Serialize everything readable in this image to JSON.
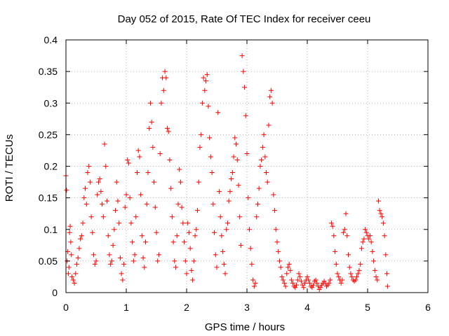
{
  "chart_data": {
    "type": "scatter",
    "title": "Day 052 of 2015, Rate Of TEC Index for receiver ceeu",
    "xlabel": "GPS time / hours",
    "ylabel": "ROTI / TECUs",
    "xlim": [
      0,
      6
    ],
    "ylim": [
      0,
      0.4
    ],
    "x_ticks": [
      0,
      1,
      2,
      3,
      4,
      5,
      6
    ],
    "x_tick_labels": [
      "0",
      "1",
      "2",
      "3",
      "4",
      "5",
      "6"
    ],
    "y_ticks": [
      0,
      0.05,
      0.1,
      0.15,
      0.2,
      0.25,
      0.3,
      0.35,
      0.4
    ],
    "y_tick_labels": [
      "0",
      "0.05",
      "0.1",
      "0.15",
      "0.2",
      "0.25",
      "0.3",
      "0.35",
      "0.4"
    ],
    "grid": true,
    "marker": "plus",
    "color": "#ff0000",
    "series": [
      {
        "name": "ROTI",
        "points": [
          [
            0.0,
            0.185
          ],
          [
            0.01,
            0.162
          ],
          [
            0.02,
            0.05
          ],
          [
            0.03,
            0.065
          ],
          [
            0.04,
            0.03
          ],
          [
            0.05,
            0.04
          ],
          [
            0.06,
            0.095
          ],
          [
            0.07,
            0.105
          ],
          [
            0.08,
            0.08
          ],
          [
            0.09,
            0.06
          ],
          [
            0.1,
            0.025
          ],
          [
            0.12,
            0.02
          ],
          [
            0.14,
            0.015
          ],
          [
            0.16,
            0.03
          ],
          [
            0.18,
            0.045
          ],
          [
            0.2,
            0.055
          ],
          [
            0.22,
            0.07
          ],
          [
            0.24,
            0.085
          ],
          [
            0.26,
            0.09
          ],
          [
            0.28,
            0.11
          ],
          [
            0.3,
            0.15
          ],
          [
            0.32,
            0.165
          ],
          [
            0.34,
            0.14
          ],
          [
            0.36,
            0.19
          ],
          [
            0.38,
            0.2
          ],
          [
            0.4,
            0.175
          ],
          [
            0.42,
            0.12
          ],
          [
            0.44,
            0.095
          ],
          [
            0.46,
            0.06
          ],
          [
            0.48,
            0.045
          ],
          [
            0.5,
            0.05
          ],
          [
            0.52,
            0.155
          ],
          [
            0.54,
            0.175
          ],
          [
            0.56,
            0.18
          ],
          [
            0.58,
            0.16
          ],
          [
            0.6,
            0.14
          ],
          [
            0.62,
            0.12
          ],
          [
            0.64,
            0.235
          ],
          [
            0.66,
            0.2
          ],
          [
            0.68,
            0.145
          ],
          [
            0.7,
            0.09
          ],
          [
            0.72,
            0.06
          ],
          [
            0.74,
            0.045
          ],
          [
            0.76,
            0.05
          ],
          [
            0.78,
            0.075
          ],
          [
            0.8,
            0.1
          ],
          [
            0.82,
            0.13
          ],
          [
            0.84,
            0.175
          ],
          [
            0.86,
            0.145
          ],
          [
            0.88,
            0.11
          ],
          [
            0.9,
            0.055
          ],
          [
            0.92,
            0.03
          ],
          [
            0.94,
            0.02
          ],
          [
            0.96,
            0.045
          ],
          [
            0.98,
            0.135
          ],
          [
            1.0,
            0.155
          ],
          [
            1.02,
            0.21
          ],
          [
            1.04,
            0.205
          ],
          [
            1.06,
            0.15
          ],
          [
            1.08,
            0.11
          ],
          [
            1.1,
            0.08
          ],
          [
            1.12,
            0.05
          ],
          [
            1.14,
            0.06
          ],
          [
            1.16,
            0.12
          ],
          [
            1.18,
            0.19
          ],
          [
            1.2,
            0.225
          ],
          [
            1.22,
            0.215
          ],
          [
            1.24,
            0.155
          ],
          [
            1.26,
            0.09
          ],
          [
            1.28,
            0.055
          ],
          [
            1.3,
            0.04
          ],
          [
            1.32,
            0.08
          ],
          [
            1.34,
            0.14
          ],
          [
            1.36,
            0.19
          ],
          [
            1.38,
            0.26
          ],
          [
            1.4,
            0.3
          ],
          [
            1.42,
            0.27
          ],
          [
            1.44,
            0.23
          ],
          [
            1.46,
            0.175
          ],
          [
            1.48,
            0.135
          ],
          [
            1.5,
            0.095
          ],
          [
            1.52,
            0.05
          ],
          [
            1.54,
            0.06
          ],
          [
            1.56,
            0.22
          ],
          [
            1.58,
            0.3
          ],
          [
            1.6,
            0.34
          ],
          [
            1.62,
            0.32
          ],
          [
            1.64,
            0.35
          ],
          [
            1.66,
            0.34
          ],
          [
            1.68,
            0.26
          ],
          [
            1.7,
            0.255
          ],
          [
            1.72,
            0.21
          ],
          [
            1.74,
            0.165
          ],
          [
            1.76,
            0.12
          ],
          [
            1.78,
            0.08
          ],
          [
            1.8,
            0.05
          ],
          [
            1.82,
            0.04
          ],
          [
            1.84,
            0.09
          ],
          [
            1.86,
            0.14
          ],
          [
            1.88,
            0.195
          ],
          [
            1.9,
            0.175
          ],
          [
            1.92,
            0.135
          ],
          [
            1.94,
            0.11
          ],
          [
            1.96,
            0.08
          ],
          [
            1.98,
            0.05
          ],
          [
            2.0,
            0.03
          ],
          [
            2.02,
            0.11
          ],
          [
            2.04,
            0.095
          ],
          [
            2.06,
            0.07
          ],
          [
            2.08,
            0.035
          ],
          [
            2.1,
            0.02
          ],
          [
            2.12,
            0.05
          ],
          [
            2.14,
            0.09
          ],
          [
            2.16,
            0.1
          ],
          [
            2.18,
            0.13
          ],
          [
            2.2,
            0.175
          ],
          [
            2.22,
            0.23
          ],
          [
            2.24,
            0.25
          ],
          [
            2.26,
            0.3
          ],
          [
            2.28,
            0.34
          ],
          [
            2.3,
            0.32
          ],
          [
            2.32,
            0.335
          ],
          [
            2.34,
            0.345
          ],
          [
            2.36,
            0.295
          ],
          [
            2.38,
            0.245
          ],
          [
            2.4,
            0.215
          ],
          [
            2.42,
            0.19
          ],
          [
            2.44,
            0.14
          ],
          [
            2.46,
            0.095
          ],
          [
            2.48,
            0.06
          ],
          [
            2.5,
            0.04
          ],
          [
            2.52,
            0.285
          ],
          [
            2.54,
            0.16
          ],
          [
            2.56,
            0.12
          ],
          [
            2.58,
            0.09
          ],
          [
            2.6,
            0.065
          ],
          [
            2.62,
            0.045
          ],
          [
            2.64,
            0.03
          ],
          [
            2.66,
            0.1
          ],
          [
            2.68,
            0.11
          ],
          [
            2.7,
            0.145
          ],
          [
            2.72,
            0.16
          ],
          [
            2.74,
            0.18
          ],
          [
            2.76,
            0.19
          ],
          [
            2.78,
            0.215
          ],
          [
            2.8,
            0.245
          ],
          [
            2.82,
            0.235
          ],
          [
            2.84,
            0.21
          ],
          [
            2.86,
            0.17
          ],
          [
            2.88,
            0.12
          ],
          [
            2.9,
            0.075
          ],
          [
            2.92,
            0.375
          ],
          [
            2.94,
            0.35
          ],
          [
            2.96,
            0.325
          ],
          [
            2.98,
            0.28
          ],
          [
            3.0,
            0.22
          ],
          [
            3.02,
            0.15
          ],
          [
            3.04,
            0.1
          ],
          [
            3.06,
            0.07
          ],
          [
            3.08,
            0.045
          ],
          [
            3.1,
            0.02
          ],
          [
            3.12,
            0.01
          ],
          [
            3.14,
            0.015
          ],
          [
            3.16,
            0.12
          ],
          [
            3.18,
            0.14
          ],
          [
            3.2,
            0.165
          ],
          [
            3.22,
            0.2
          ],
          [
            3.24,
            0.21
          ],
          [
            3.26,
            0.23
          ],
          [
            3.28,
            0.25
          ],
          [
            3.3,
            0.215
          ],
          [
            3.32,
            0.19
          ],
          [
            3.34,
            0.175
          ],
          [
            3.36,
            0.265
          ],
          [
            3.38,
            0.31
          ],
          [
            3.4,
            0.32
          ],
          [
            3.42,
            0.3
          ],
          [
            3.44,
            0.155
          ],
          [
            3.46,
            0.13
          ],
          [
            3.48,
            0.1
          ],
          [
            3.5,
            0.08
          ],
          [
            3.52,
            0.065
          ],
          [
            3.54,
            0.05
          ],
          [
            3.56,
            0.04
          ],
          [
            3.58,
            0.025
          ],
          [
            3.6,
            0.02
          ],
          [
            3.62,
            0.015
          ],
          [
            3.64,
            0.01
          ],
          [
            3.66,
            0.03
          ],
          [
            3.68,
            0.04
          ],
          [
            3.7,
            0.045
          ],
          [
            3.72,
            0.035
          ],
          [
            3.74,
            0.02
          ],
          [
            3.76,
            0.015
          ],
          [
            3.78,
            0.01
          ],
          [
            3.8,
            0.008
          ],
          [
            3.82,
            0.012
          ],
          [
            3.84,
            0.02
          ],
          [
            3.86,
            0.03
          ],
          [
            3.88,
            0.025
          ],
          [
            3.9,
            0.018
          ],
          [
            3.92,
            0.012
          ],
          [
            3.94,
            0.008
          ],
          [
            3.96,
            0.015
          ],
          [
            3.98,
            0.02
          ],
          [
            4.0,
            0.025
          ],
          [
            4.02,
            0.02
          ],
          [
            4.04,
            0.015
          ],
          [
            4.06,
            0.01
          ],
          [
            4.08,
            0.008
          ],
          [
            4.1,
            0.012
          ],
          [
            4.12,
            0.018
          ],
          [
            4.14,
            0.02
          ],
          [
            4.16,
            0.015
          ],
          [
            4.18,
            0.01
          ],
          [
            4.2,
            0.005
          ],
          [
            4.22,
            0.008
          ],
          [
            4.24,
            0.012
          ],
          [
            4.26,
            0.015
          ],
          [
            4.28,
            0.018
          ],
          [
            4.3,
            0.015
          ],
          [
            4.32,
            0.01
          ],
          [
            4.34,
            0.012
          ],
          [
            4.36,
            0.015
          ],
          [
            4.38,
            0.02
          ],
          [
            4.4,
            0.11
          ],
          [
            4.42,
            0.105
          ],
          [
            4.44,
            0.09
          ],
          [
            4.46,
            0.065
          ],
          [
            4.48,
            0.045
          ],
          [
            4.5,
            0.03
          ],
          [
            4.52,
            0.025
          ],
          [
            4.54,
            0.02
          ],
          [
            4.56,
            0.015
          ],
          [
            4.58,
            0.02
          ],
          [
            4.6,
            0.095
          ],
          [
            4.62,
            0.1
          ],
          [
            4.64,
            0.125
          ],
          [
            4.66,
            0.09
          ],
          [
            4.68,
            0.06
          ],
          [
            4.7,
            0.04
          ],
          [
            4.72,
            0.03
          ],
          [
            4.74,
            0.025
          ],
          [
            4.76,
            0.02
          ],
          [
            4.78,
            0.018
          ],
          [
            4.8,
            0.02
          ],
          [
            4.82,
            0.025
          ],
          [
            4.84,
            0.03
          ],
          [
            4.86,
            0.035
          ],
          [
            4.88,
            0.045
          ],
          [
            4.9,
            0.07
          ],
          [
            4.92,
            0.08
          ],
          [
            4.94,
            0.085
          ],
          [
            4.96,
            0.1
          ],
          [
            4.98,
            0.095
          ],
          [
            5.0,
            0.09
          ],
          [
            5.02,
            0.085
          ],
          [
            5.04,
            0.09
          ],
          [
            5.06,
            0.08
          ],
          [
            5.08,
            0.065
          ],
          [
            5.1,
            0.05
          ],
          [
            5.12,
            0.035
          ],
          [
            5.14,
            0.025
          ],
          [
            5.16,
            0.02
          ],
          [
            5.18,
            0.145
          ],
          [
            5.2,
            0.13
          ],
          [
            5.22,
            0.125
          ],
          [
            5.24,
            0.12
          ],
          [
            5.26,
            0.11
          ],
          [
            5.28,
            0.09
          ],
          [
            5.3,
            0.06
          ],
          [
            5.32,
            0.03
          ],
          [
            5.33,
            0.01
          ]
        ]
      }
    ]
  }
}
